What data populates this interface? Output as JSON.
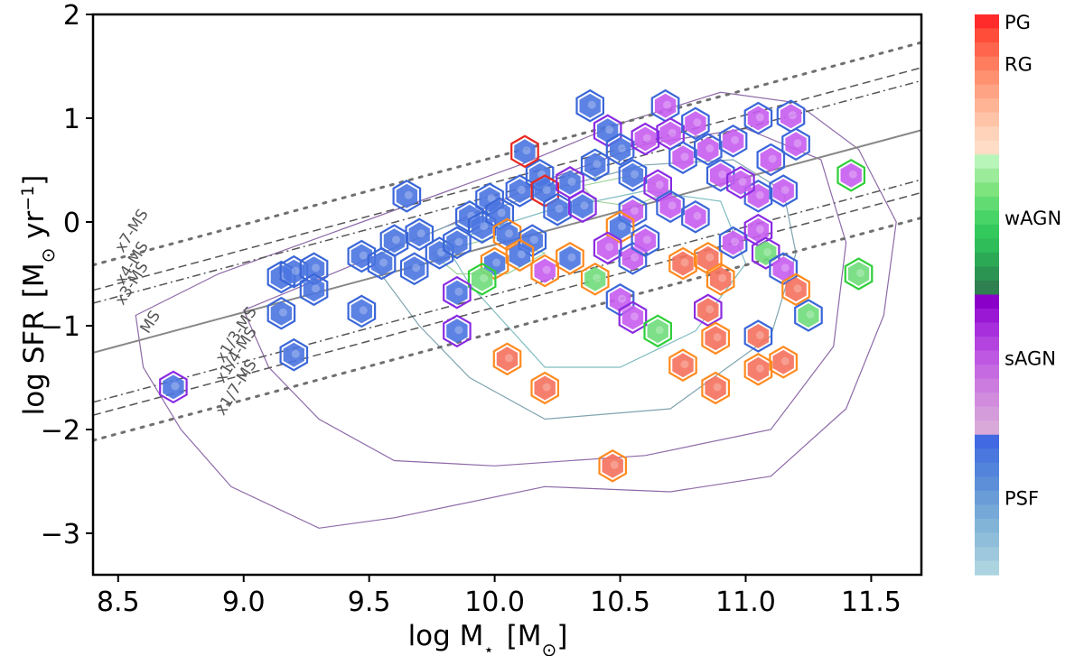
{
  "chart_data": {
    "type": "scatter",
    "xlabel_main": "log M",
    "xlabel_sub": "⋆",
    "xlabel_unit_open": "[M",
    "xlabel_unit_sub": "⊙",
    "xlabel_unit_close": "]",
    "ylabel_main": "log SFR",
    "ylabel_unit_open": "[M",
    "ylabel_unit_sub": "⊙",
    "ylabel_unit_rest": " yr",
    "ylabel_unit_sup": "−1",
    "ylabel_unit_close": "]",
    "xlim": [
      8.4,
      11.7
    ],
    "ylim": [
      -3.4,
      2.0
    ],
    "xticks": [
      8.5,
      9.0,
      9.5,
      10.0,
      10.5,
      11.0,
      11.5
    ],
    "xtick_labels": [
      "8.5",
      "9.0",
      "9.5",
      "10.0",
      "10.5",
      "11.0",
      "11.5"
    ],
    "yticks": [
      -3,
      -2,
      -1,
      0,
      1,
      2
    ],
    "ytick_labels": [
      "−3",
      "−2",
      "−1",
      "0",
      "1",
      "2"
    ],
    "main_sequence": {
      "slope": 0.65,
      "intercept": -6.72
    },
    "reference_lines": [
      {
        "name": "x7-MS",
        "offset_dex": 0.845,
        "style": "dotted"
      },
      {
        "name": "x4-MS",
        "offset_dex": 0.602,
        "style": "dashed"
      },
      {
        "name": "x3-MS",
        "offset_dex": 0.477,
        "style": "dashdot"
      },
      {
        "name": "MS",
        "offset_dex": 0.0,
        "style": "solid"
      },
      {
        "name": "x1/3-MS",
        "offset_dex": -0.477,
        "style": "dashdot"
      },
      {
        "name": "x1/4-MS",
        "offset_dex": -0.602,
        "style": "dashed"
      },
      {
        "name": "x1/7-MS",
        "offset_dex": -0.845,
        "style": "dotted"
      }
    ],
    "contours": [
      {
        "color": "#8e6aa8",
        "points": [
          [
            8.57,
            -0.9
          ],
          [
            8.9,
            -0.5
          ],
          [
            9.3,
            -0.15
          ],
          [
            9.7,
            0.2
          ],
          [
            10.1,
            0.55
          ],
          [
            10.5,
            0.95
          ],
          [
            10.9,
            1.25
          ],
          [
            11.2,
            1.15
          ],
          [
            11.45,
            0.7
          ],
          [
            11.6,
            0.0
          ],
          [
            11.55,
            -0.9
          ],
          [
            11.4,
            -1.8
          ],
          [
            11.1,
            -2.45
          ],
          [
            10.7,
            -2.6
          ],
          [
            10.2,
            -2.55
          ],
          [
            9.6,
            -2.85
          ],
          [
            9.3,
            -2.95
          ],
          [
            8.95,
            -2.55
          ],
          [
            8.75,
            -2.0
          ],
          [
            8.6,
            -1.4
          ]
        ]
      },
      {
        "color": "#8e6aa8",
        "points": [
          [
            9.0,
            -0.85
          ],
          [
            9.4,
            -0.45
          ],
          [
            9.8,
            -0.05
          ],
          [
            10.2,
            0.4
          ],
          [
            10.6,
            0.75
          ],
          [
            11.0,
            0.9
          ],
          [
            11.3,
            0.6
          ],
          [
            11.4,
            -0.2
          ],
          [
            11.35,
            -1.2
          ],
          [
            11.1,
            -2.0
          ],
          [
            10.6,
            -2.25
          ],
          [
            10.0,
            -2.35
          ],
          [
            9.6,
            -2.3
          ],
          [
            9.3,
            -1.9
          ],
          [
            9.1,
            -1.4
          ]
        ]
      },
      {
        "color": "#7fa4b0",
        "points": [
          [
            9.5,
            -0.35
          ],
          [
            9.8,
            -0.05
          ],
          [
            10.2,
            0.3
          ],
          [
            10.6,
            0.55
          ],
          [
            10.95,
            0.6
          ],
          [
            11.15,
            0.3
          ],
          [
            11.2,
            -0.3
          ],
          [
            11.1,
            -1.1
          ],
          [
            10.7,
            -1.8
          ],
          [
            10.2,
            -1.9
          ],
          [
            9.9,
            -1.5
          ],
          [
            9.7,
            -1.0
          ]
        ]
      },
      {
        "color": "#7fbcc0",
        "points": [
          [
            9.8,
            -0.2
          ],
          [
            10.2,
            0.1
          ],
          [
            10.6,
            0.3
          ],
          [
            10.9,
            0.2
          ],
          [
            11.0,
            -0.4
          ],
          [
            10.8,
            -1.05
          ],
          [
            10.5,
            -1.4
          ],
          [
            10.2,
            -1.4
          ],
          [
            10.05,
            -1.0
          ],
          [
            9.9,
            -0.6
          ]
        ]
      },
      {
        "color": "#9fd49a",
        "points": [
          [
            9.75,
            -0.3
          ],
          [
            10.0,
            -0.15
          ],
          [
            10.2,
            -0.3
          ],
          [
            10.05,
            -0.5
          ],
          [
            9.85,
            -0.5
          ]
        ]
      },
      {
        "color": "#9fd49a",
        "points": [
          [
            10.35,
            0.35
          ],
          [
            10.55,
            0.45
          ],
          [
            10.7,
            0.3
          ],
          [
            10.55,
            0.15
          ],
          [
            10.4,
            0.2
          ]
        ]
      }
    ],
    "galaxies": [
      {
        "x": 8.72,
        "y": -1.59,
        "fill": "PSF",
        "edge": "sAGN"
      },
      {
        "x": 9.15,
        "y": -0.53,
        "fill": "PSF",
        "edge": "PSF"
      },
      {
        "x": 9.2,
        "y": -0.48,
        "fill": "PSF",
        "edge": "PSF"
      },
      {
        "x": 9.28,
        "y": -0.45,
        "fill": "PSF",
        "edge": "PSF"
      },
      {
        "x": 9.15,
        "y": -0.88,
        "fill": "PSF",
        "edge": "PSF"
      },
      {
        "x": 9.28,
        "y": -0.65,
        "fill": "PSF",
        "edge": "PSF"
      },
      {
        "x": 9.2,
        "y": -1.28,
        "fill": "PSF",
        "edge": "PSF"
      },
      {
        "x": 9.47,
        "y": -0.86,
        "fill": "PSF",
        "edge": "PSF"
      },
      {
        "x": 9.47,
        "y": -0.33,
        "fill": "PSF",
        "edge": "PSF"
      },
      {
        "x": 9.55,
        "y": -0.4,
        "fill": "PSF",
        "edge": "PSF"
      },
      {
        "x": 9.6,
        "y": -0.18,
        "fill": "PSF",
        "edge": "PSF"
      },
      {
        "x": 9.68,
        "y": -0.45,
        "fill": "PSF",
        "edge": "PSF"
      },
      {
        "x": 9.7,
        "y": -0.12,
        "fill": "PSF",
        "edge": "PSF"
      },
      {
        "x": 9.78,
        "y": -0.3,
        "fill": "PSF",
        "edge": "PSF"
      },
      {
        "x": 9.65,
        "y": 0.25,
        "fill": "PSF",
        "edge": "PSF"
      },
      {
        "x": 9.85,
        "y": -0.2,
        "fill": "PSF",
        "edge": "PSF"
      },
      {
        "x": 9.9,
        "y": 0.05,
        "fill": "PSF",
        "edge": "PSF"
      },
      {
        "x": 9.95,
        "y": -0.05,
        "fill": "PSF",
        "edge": "PSF"
      },
      {
        "x": 9.98,
        "y": 0.22,
        "fill": "PSF",
        "edge": "PSF"
      },
      {
        "x": 10.02,
        "y": 0.08,
        "fill": "PSF",
        "edge": "PSF"
      },
      {
        "x": 10.05,
        "y": -0.12,
        "fill": "PSF",
        "edge": "RG"
      },
      {
        "x": 10.1,
        "y": 0.3,
        "fill": "PSF",
        "edge": "PSF"
      },
      {
        "x": 10.15,
        "y": -0.18,
        "fill": "PSF",
        "edge": "PSF"
      },
      {
        "x": 10.18,
        "y": 0.45,
        "fill": "PSF",
        "edge": "PSF"
      },
      {
        "x": 10.12,
        "y": 0.68,
        "fill": "PSF",
        "edge": "PG"
      },
      {
        "x": 10.2,
        "y": 0.3,
        "fill": "PSF",
        "edge": "PG"
      },
      {
        "x": 10.25,
        "y": 0.12,
        "fill": "PSF",
        "edge": "PSF"
      },
      {
        "x": 10.3,
        "y": 0.38,
        "fill": "PSF",
        "edge": "sAGN"
      },
      {
        "x": 10.35,
        "y": 0.15,
        "fill": "PSF",
        "edge": "sAGN"
      },
      {
        "x": 10.4,
        "y": 0.55,
        "fill": "PSF",
        "edge": "PSF"
      },
      {
        "x": 10.45,
        "y": 0.88,
        "fill": "PSF",
        "edge": "sAGN"
      },
      {
        "x": 10.38,
        "y": 1.12,
        "fill": "PSF",
        "edge": "PSF"
      },
      {
        "x": 10.5,
        "y": 0.7,
        "fill": "PSF",
        "edge": "PSF"
      },
      {
        "x": 10.55,
        "y": 0.45,
        "fill": "PSF",
        "edge": "PSF"
      },
      {
        "x": 10.6,
        "y": 0.8,
        "fill": "sAGN",
        "edge": "sAGN"
      },
      {
        "x": 10.68,
        "y": 1.12,
        "fill": "sAGN",
        "edge": "PSF"
      },
      {
        "x": 10.7,
        "y": 0.85,
        "fill": "sAGN",
        "edge": "sAGN"
      },
      {
        "x": 10.75,
        "y": 0.62,
        "fill": "sAGN",
        "edge": "PSF"
      },
      {
        "x": 10.8,
        "y": 0.95,
        "fill": "sAGN",
        "edge": "PSF"
      },
      {
        "x": 10.85,
        "y": 0.7,
        "fill": "sAGN",
        "edge": "PSF"
      },
      {
        "x": 10.9,
        "y": 0.45,
        "fill": "sAGN",
        "edge": "PSF"
      },
      {
        "x": 10.95,
        "y": 0.78,
        "fill": "sAGN",
        "edge": "PSF"
      },
      {
        "x": 11.05,
        "y": 1.0,
        "fill": "sAGN",
        "edge": "PSF"
      },
      {
        "x": 11.1,
        "y": 0.6,
        "fill": "sAGN",
        "edge": "PSF"
      },
      {
        "x": 11.18,
        "y": 1.02,
        "fill": "sAGN",
        "edge": "PSF"
      },
      {
        "x": 11.2,
        "y": 0.75,
        "fill": "sAGN",
        "edge": "PSF"
      },
      {
        "x": 11.05,
        "y": 0.25,
        "fill": "sAGN",
        "edge": "PSF"
      },
      {
        "x": 10.98,
        "y": 0.38,
        "fill": "sAGN",
        "edge": "sAGN"
      },
      {
        "x": 11.15,
        "y": 0.3,
        "fill": "sAGN",
        "edge": "PSF"
      },
      {
        "x": 10.65,
        "y": 0.35,
        "fill": "sAGN",
        "edge": "sAGN"
      },
      {
        "x": 10.7,
        "y": 0.15,
        "fill": "sAGN",
        "edge": "PSF"
      },
      {
        "x": 10.8,
        "y": 0.05,
        "fill": "sAGN",
        "edge": "PSF"
      },
      {
        "x": 10.55,
        "y": 0.1,
        "fill": "sAGN",
        "edge": "PSF"
      },
      {
        "x": 10.5,
        "y": -0.05,
        "fill": "PSF",
        "edge": "RG"
      },
      {
        "x": 10.45,
        "y": -0.25,
        "fill": "sAGN",
        "edge": "sAGN"
      },
      {
        "x": 10.55,
        "y": -0.35,
        "fill": "sAGN",
        "edge": "PSF"
      },
      {
        "x": 10.6,
        "y": -0.18,
        "fill": "sAGN",
        "edge": "PSF"
      },
      {
        "x": 10.4,
        "y": -0.55,
        "fill": "wAGN",
        "edge": "RG"
      },
      {
        "x": 10.3,
        "y": -0.35,
        "fill": "PSF",
        "edge": "RG"
      },
      {
        "x": 10.2,
        "y": -0.47,
        "fill": "sAGN",
        "edge": "RG"
      },
      {
        "x": 10.1,
        "y": -0.32,
        "fill": "PSF",
        "edge": "RG"
      },
      {
        "x": 10.0,
        "y": -0.4,
        "fill": "PSF",
        "edge": "RG"
      },
      {
        "x": 9.95,
        "y": -0.55,
        "fill": "wAGN",
        "edge": "wAGN"
      },
      {
        "x": 9.85,
        "y": -0.68,
        "fill": "PSF",
        "edge": "sAGN"
      },
      {
        "x": 9.85,
        "y": -1.05,
        "fill": "PSF",
        "edge": "sAGN"
      },
      {
        "x": 10.5,
        "y": -0.75,
        "fill": "sAGN",
        "edge": "PSF"
      },
      {
        "x": 10.55,
        "y": -0.92,
        "fill": "sAGN",
        "edge": "sAGN"
      },
      {
        "x": 10.65,
        "y": -1.05,
        "fill": "wAGN",
        "edge": "wAGN"
      },
      {
        "x": 10.75,
        "y": -0.4,
        "fill": "RG",
        "edge": "RG"
      },
      {
        "x": 10.85,
        "y": -0.35,
        "fill": "RG",
        "edge": "RG"
      },
      {
        "x": 10.9,
        "y": -0.55,
        "fill": "RG",
        "edge": "RG"
      },
      {
        "x": 10.85,
        "y": -0.85,
        "fill": "RG",
        "edge": "sAGN"
      },
      {
        "x": 10.95,
        "y": -0.2,
        "fill": "sAGN",
        "edge": "PSF"
      },
      {
        "x": 11.05,
        "y": -0.08,
        "fill": "sAGN",
        "edge": "sAGN"
      },
      {
        "x": 11.08,
        "y": -0.3,
        "fill": "wAGN",
        "edge": "sAGN"
      },
      {
        "x": 11.15,
        "y": -0.45,
        "fill": "sAGN",
        "edge": "PSF"
      },
      {
        "x": 11.2,
        "y": -0.65,
        "fill": "RG",
        "edge": "RG"
      },
      {
        "x": 11.25,
        "y": -0.9,
        "fill": "wAGN",
        "edge": "PSF"
      },
      {
        "x": 11.42,
        "y": 0.45,
        "fill": "sAGN",
        "edge": "wAGN"
      },
      {
        "x": 11.45,
        "y": -0.5,
        "fill": "wAGN",
        "edge": "wAGN"
      },
      {
        "x": 10.88,
        "y": -1.12,
        "fill": "RG",
        "edge": "RG"
      },
      {
        "x": 11.05,
        "y": -1.1,
        "fill": "RG",
        "edge": "PSF"
      },
      {
        "x": 10.75,
        "y": -1.38,
        "fill": "RG",
        "edge": "RG"
      },
      {
        "x": 10.88,
        "y": -1.6,
        "fill": "RG",
        "edge": "RG"
      },
      {
        "x": 11.05,
        "y": -1.42,
        "fill": "RG",
        "edge": "RG"
      },
      {
        "x": 11.15,
        "y": -1.35,
        "fill": "RG",
        "edge": "RG"
      },
      {
        "x": 10.05,
        "y": -1.32,
        "fill": "RG",
        "edge": "RG"
      },
      {
        "x": 10.2,
        "y": -1.6,
        "fill": "RG",
        "edge": "RG"
      },
      {
        "x": 10.47,
        "y": -2.35,
        "fill": "RG",
        "edge": "RG"
      }
    ],
    "colorbar": {
      "segments": [
        "#ff2b2b",
        "#ff4d3a",
        "#ff654c",
        "#ff7c5e",
        "#ff9070",
        "#ffa385",
        "#ffb496",
        "#ffc3a8",
        "#ffd2ba",
        "#ffdcc6",
        "#b8f5b8",
        "#9beb9b",
        "#7ee47e",
        "#62dc72",
        "#48d466",
        "#33c95c",
        "#2ebd58",
        "#2ca954",
        "#2c9452",
        "#2e8050",
        "#8a00c9",
        "#9a18d4",
        "#a82fdc",
        "#b444e0",
        "#be57e2",
        "#c56ae0",
        "#cc7cdf",
        "#d18cde",
        "#d59cdc",
        "#d9a9da",
        "#4169e1",
        "#4a78de",
        "#5384db",
        "#5c8fd8",
        "#6a9dd8",
        "#76a9d8",
        "#82b4d8",
        "#8fbedb",
        "#9dc8dd",
        "#acd4e0"
      ],
      "labels": [
        {
          "text": "PG",
          "index": 0
        },
        {
          "text": "RG",
          "index": 3
        },
        {
          "text": "wAGN",
          "index": 14
        },
        {
          "text": "sAGN",
          "index": 24
        },
        {
          "text": "PSF",
          "index": 34
        }
      ]
    },
    "categories": {
      "PG": {
        "fill": "#ff3b30",
        "edge": "#e8271f"
      },
      "RG": {
        "fill": "#f4705c",
        "edge": "#ff8a1f"
      },
      "wAGN": {
        "fill": "#6fdc7a",
        "edge": "#2fcf3a"
      },
      "sAGN": {
        "fill": "#c65cf0",
        "edge": "#8a2be2"
      },
      "PSF": {
        "fill": "#4a74e0",
        "edge": "#3a66d8"
      }
    }
  }
}
